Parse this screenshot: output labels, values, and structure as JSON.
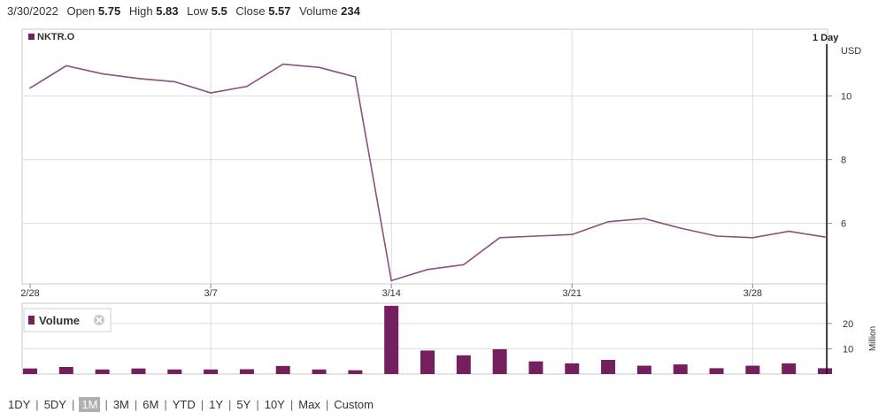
{
  "info": {
    "date": "3/30/2022",
    "open_label": "Open",
    "open": "5.75",
    "high_label": "High",
    "high": "5.83",
    "low_label": "Low",
    "low": "5.5",
    "close_label": "Close",
    "close": "5.57",
    "volume_label": "Volume",
    "volume": "234"
  },
  "colors": {
    "series": "#8b4f81",
    "bar": "#74205f",
    "grid": "#dcdcdc",
    "axis": "#222222"
  },
  "range_selector": {
    "options": [
      "1DY",
      "5DY",
      "1M",
      "3M",
      "6M",
      "YTD",
      "1Y",
      "5Y",
      "10Y",
      "Max",
      "Custom"
    ],
    "active": "1M"
  },
  "chart_data": [
    {
      "type": "line",
      "legend": "NKTR.O",
      "interval_label": "1 Day",
      "y_unit_label": "USD",
      "y_ticks": [
        6,
        8,
        10
      ],
      "ylim": [
        4.1,
        12.1
      ],
      "x_tick_labels": [
        "2/28",
        "3/7",
        "3/14",
        "3/21",
        "3/28"
      ],
      "x_tick_index": [
        0,
        5,
        10,
        15,
        20
      ],
      "x": [
        "2/28",
        "3/1",
        "3/2",
        "3/3",
        "3/4",
        "3/7",
        "3/8",
        "3/9",
        "3/10",
        "3/11",
        "3/14",
        "3/15",
        "3/16",
        "3/17",
        "3/18",
        "3/21",
        "3/22",
        "3/23",
        "3/24",
        "3/25",
        "3/28",
        "3/29",
        "3/30"
      ],
      "series": [
        {
          "values": [
            10.25,
            10.95,
            10.7,
            10.55,
            10.45,
            10.1,
            10.3,
            11.0,
            10.9,
            10.6,
            4.2,
            4.55,
            4.7,
            5.55,
            5.6,
            5.65,
            6.05,
            6.15,
            5.85,
            5.6,
            5.55,
            5.75,
            5.57
          ]
        }
      ],
      "grid": true
    },
    {
      "type": "bar",
      "legend": "Volume",
      "y_unit_label": "Million",
      "y_ticks": [
        10,
        20
      ],
      "ylim": [
        0,
        28
      ],
      "x": [
        "2/28",
        "3/1",
        "3/2",
        "3/3",
        "3/4",
        "3/7",
        "3/8",
        "3/9",
        "3/10",
        "3/11",
        "3/14",
        "3/15",
        "3/16",
        "3/17",
        "3/18",
        "3/21",
        "3/22",
        "3/23",
        "3/24",
        "3/25",
        "3/28",
        "3/29",
        "3/30"
      ],
      "values": [
        2.2,
        2.8,
        1.8,
        2.2,
        1.8,
        1.8,
        1.9,
        3.2,
        1.8,
        1.5,
        27.0,
        9.3,
        7.4,
        9.8,
        5.0,
        4.2,
        5.6,
        3.3,
        3.8,
        2.3,
        3.3,
        4.2,
        2.3
      ],
      "grid": true
    }
  ]
}
